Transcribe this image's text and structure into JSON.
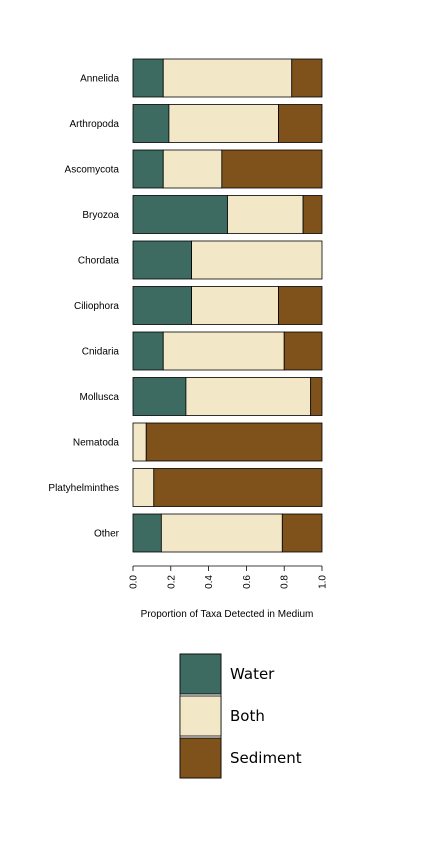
{
  "chart_data": {
    "type": "bar",
    "orientation": "horizontal",
    "stacked": true,
    "categories": [
      "Annelida",
      "Arthropoda",
      "Ascomycota",
      "Bryozoa",
      "Chordata",
      "Ciliophora",
      "Cnidaria",
      "Mollusca",
      "Nematoda",
      "Platyhelminthes",
      "Other"
    ],
    "series": [
      {
        "name": "Water",
        "color": "#3d6b62",
        "values": [
          0.16,
          0.19,
          0.16,
          0.5,
          0.31,
          0.31,
          0.16,
          0.28,
          0.0,
          0.0,
          0.15
        ]
      },
      {
        "name": "Both",
        "color": "#f2e8c8",
        "values": [
          0.68,
          0.58,
          0.31,
          0.4,
          0.69,
          0.46,
          0.64,
          0.66,
          0.07,
          0.11,
          0.64
        ]
      },
      {
        "name": "Sediment",
        "color": "#7f521c",
        "values": [
          0.16,
          0.23,
          0.53,
          0.1,
          0.0,
          0.23,
          0.2,
          0.06,
          0.93,
          0.89,
          0.21
        ]
      }
    ],
    "xlabel": "Proportion of Taxa Detected in Medium",
    "xlim": [
      0,
      1
    ],
    "xticks": [
      "0.0",
      "0.2",
      "0.4",
      "0.6",
      "0.8",
      "1.0"
    ],
    "legend_position": "bottom",
    "grid": false
  }
}
